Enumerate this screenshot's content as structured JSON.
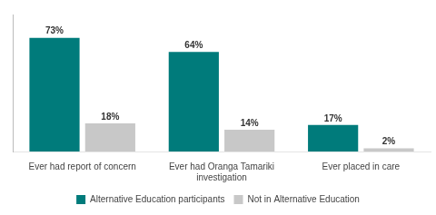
{
  "chart_data": {
    "type": "bar",
    "categories": [
      "Ever had report of concern",
      "Ever had Oranga Tamariki\ninvestigation",
      "Ever placed in care"
    ],
    "series": [
      {
        "name": "Alternative Education participants",
        "color": "#007b7b",
        "values": [
          73,
          64,
          17
        ],
        "value_labels": [
          "73%",
          "64%",
          "17%"
        ]
      },
      {
        "name": "Not in Alternative Education",
        "color": "#c8c8c8",
        "values": [
          18,
          14,
          2
        ],
        "value_labels": [
          "18%",
          "14%",
          "2%"
        ]
      }
    ],
    "ylim": [
      0,
      88
    ],
    "grid": false,
    "legend": "bottom",
    "data_labels": true,
    "tick_labels": "x"
  }
}
